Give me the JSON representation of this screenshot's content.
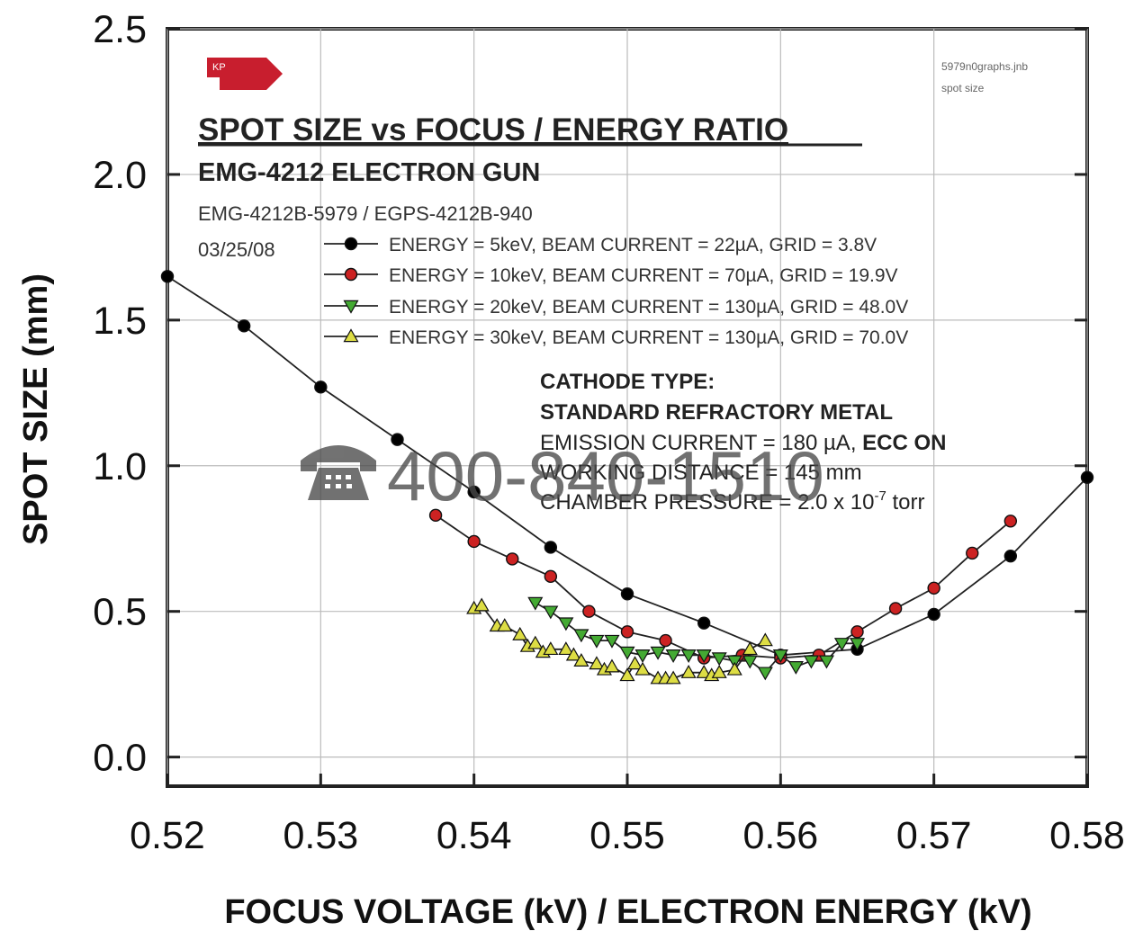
{
  "chart_data": {
    "type": "line",
    "title": "SPOT SIZE vs FOCUS / ENERGY RATIO",
    "subtitle": "EMG-4212 ELECTRON GUN",
    "model_line": "EMG-4212B-5979 / EGPS-4212B-940",
    "date": "03/25/08",
    "file_note_1": "5979n0graphs.jnb",
    "file_note_2": "spot size",
    "logo_text": "KP",
    "xlabel": "FOCUS VOLTAGE (kV) / ELECTRON ENERGY (kV)",
    "ylabel": "SPOT SIZE (mm)",
    "xlim": [
      0.52,
      0.58
    ],
    "ylim": [
      -0.1,
      2.5
    ],
    "x_ticks": [
      "0.52",
      "0.53",
      "0.54",
      "0.55",
      "0.56",
      "0.57",
      "0.58"
    ],
    "y_ticks": [
      "0.0",
      "0.5",
      "1.0",
      "1.5",
      "2.0",
      "2.5"
    ],
    "grid": true,
    "legend_position": "top-right",
    "series": [
      {
        "name": "ENERGY = 5keV,   BEAM CURRENT = 22µA,    GRID = 3.8V",
        "marker": "circle",
        "color": "#000000",
        "x": [
          0.52,
          0.525,
          0.53,
          0.535,
          0.54,
          0.545,
          0.55,
          0.555,
          0.56,
          0.565,
          0.57,
          0.575,
          0.58
        ],
        "y": [
          1.65,
          1.48,
          1.27,
          1.09,
          0.91,
          0.72,
          0.56,
          0.46,
          0.35,
          0.37,
          0.49,
          0.69,
          0.96
        ]
      },
      {
        "name": "ENERGY = 10keV, BEAM CURRENT = 70µA,    GRID = 19.9V",
        "marker": "circle",
        "color": "#cc2222",
        "x": [
          0.5375,
          0.54,
          0.5425,
          0.545,
          0.5475,
          0.55,
          0.5525,
          0.555,
          0.5575,
          0.56,
          0.5625,
          0.565,
          0.5675,
          0.57,
          0.5725,
          0.575
        ],
        "y": [
          0.83,
          0.74,
          0.68,
          0.62,
          0.5,
          0.43,
          0.4,
          0.34,
          0.35,
          0.34,
          0.35,
          0.43,
          0.51,
          0.58,
          0.7,
          0.81
        ]
      },
      {
        "name": "ENERGY = 20keV, BEAM CURRENT = 130µA,  GRID = 48.0V",
        "marker": "triangle-down",
        "color": "#44aa33",
        "x": [
          0.544,
          0.545,
          0.546,
          0.547,
          0.548,
          0.549,
          0.55,
          0.551,
          0.552,
          0.553,
          0.554,
          0.555,
          0.556,
          0.557,
          0.558,
          0.559,
          0.56,
          0.561,
          0.562,
          0.563,
          0.564,
          0.565
        ],
        "y": [
          0.53,
          0.5,
          0.46,
          0.42,
          0.4,
          0.4,
          0.36,
          0.35,
          0.36,
          0.35,
          0.35,
          0.35,
          0.34,
          0.33,
          0.33,
          0.29,
          0.35,
          0.31,
          0.33,
          0.33,
          0.39,
          0.39
        ]
      },
      {
        "name": "ENERGY = 30keV,  BEAM CURRENT = 130µA, GRID = 70.0V",
        "marker": "triangle-up",
        "color": "#dddd44",
        "x": [
          0.54,
          0.5405,
          0.5415,
          0.542,
          0.543,
          0.5435,
          0.544,
          0.5445,
          0.545,
          0.546,
          0.5465,
          0.547,
          0.548,
          0.5485,
          0.549,
          0.55,
          0.5505,
          0.551,
          0.552,
          0.5525,
          0.553,
          0.554,
          0.555,
          0.5555,
          0.556,
          0.557,
          0.558,
          0.559
        ],
        "y": [
          0.51,
          0.52,
          0.45,
          0.45,
          0.42,
          0.38,
          0.39,
          0.36,
          0.37,
          0.37,
          0.35,
          0.33,
          0.32,
          0.3,
          0.31,
          0.28,
          0.32,
          0.3,
          0.27,
          0.27,
          0.27,
          0.29,
          0.29,
          0.28,
          0.29,
          0.3,
          0.37,
          0.4
        ]
      }
    ],
    "annotations": {
      "cathode_heading": "CATHODE TYPE:",
      "cathode_type": "STANDARD REFRACTORY METAL",
      "emission_prefix": "EMISSION CURRENT = 180 µA, ",
      "emission_suffix": "ECC ON",
      "working_distance": "WORKING DISTANCE = 145 mm",
      "pressure_prefix": "CHAMBER PRESSURE = 2.0 x 10",
      "pressure_exp": "-7",
      "pressure_unit": " torr"
    }
  },
  "watermark": {
    "icon": "telephone-icon",
    "text": "400-840-1510"
  }
}
